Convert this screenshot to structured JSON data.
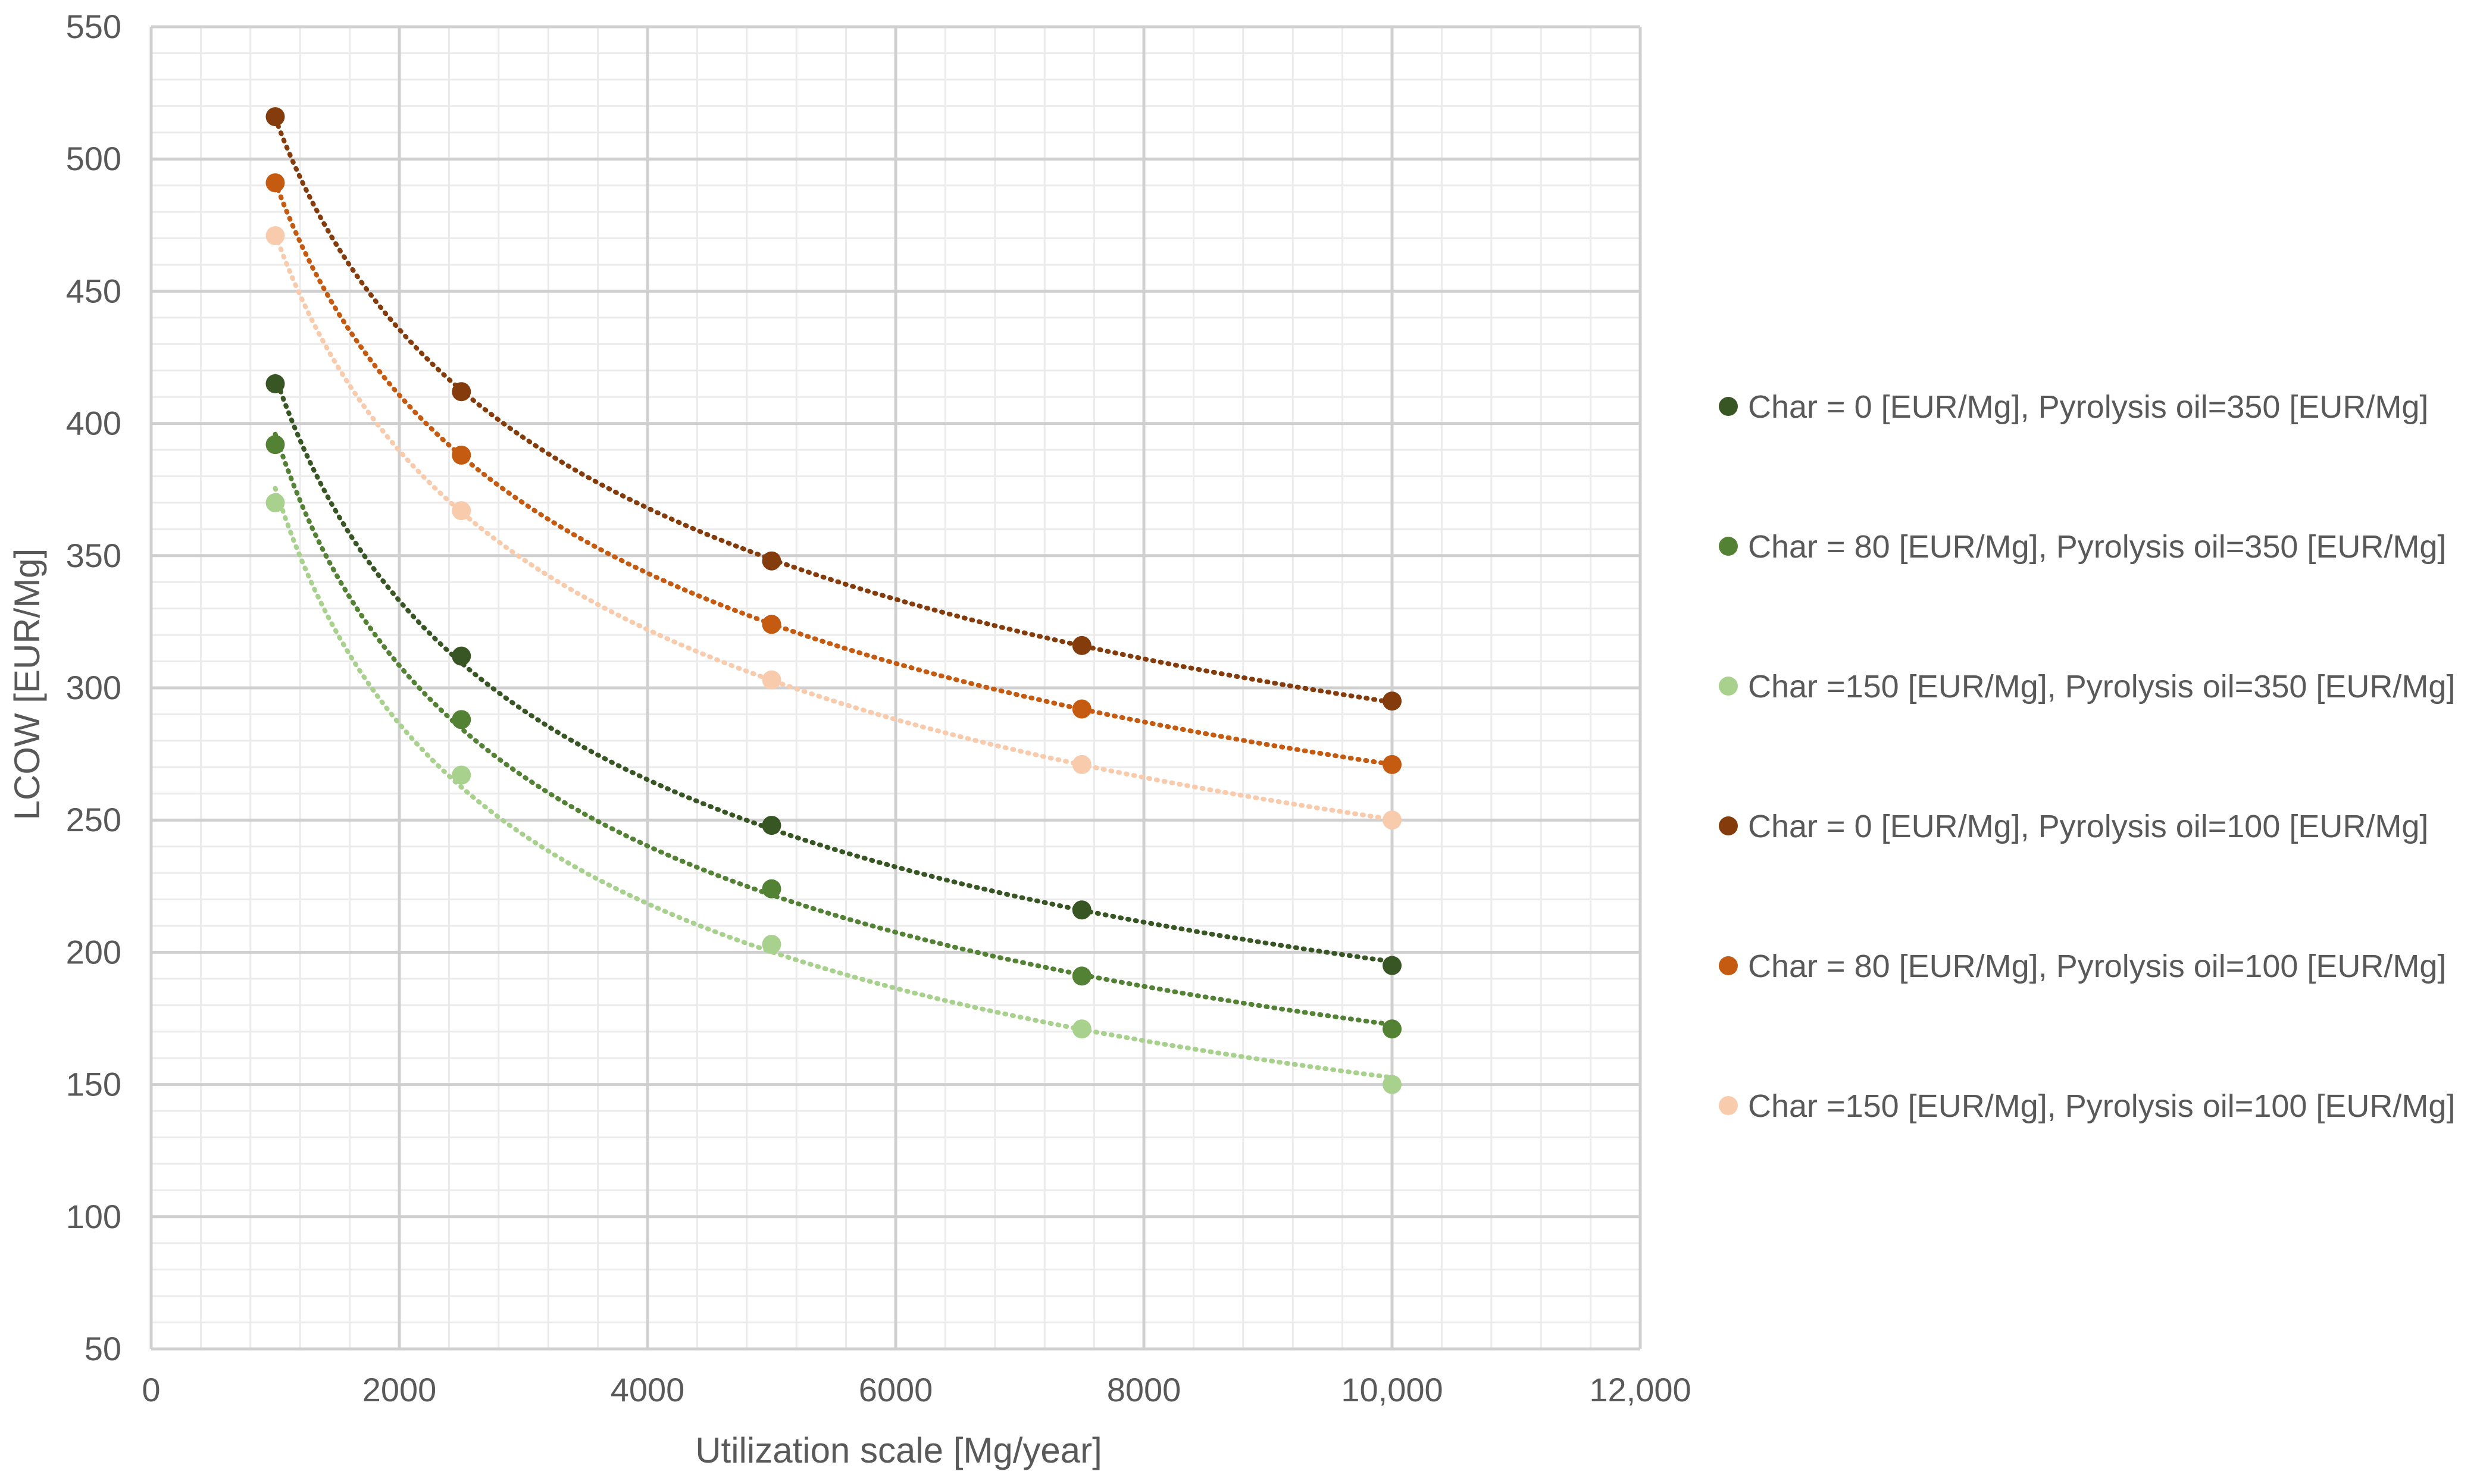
{
  "chart_data": {
    "type": "scatter",
    "title": "",
    "xlabel": "Utilization scale [Mg/year]",
    "ylabel": "LCOW [EUR/Mg]",
    "xlim": [
      0,
      12000
    ],
    "ylim": [
      50,
      550
    ],
    "x_major_ticks": [
      0,
      2000,
      4000,
      6000,
      8000,
      10000,
      12000
    ],
    "x_tick_labels": [
      "0",
      "2000",
      "4000",
      "6000",
      "8000",
      "10,000",
      "12,000"
    ],
    "y_major_ticks": [
      50,
      100,
      150,
      200,
      250,
      300,
      350,
      400,
      450,
      500,
      550
    ],
    "y_tick_labels": [
      "50",
      "100",
      "150",
      "200",
      "250",
      "300",
      "350",
      "400",
      "450",
      "500",
      "550"
    ],
    "x_minor_step": 400,
    "y_minor_step": 10,
    "grid": true,
    "trendline": "power (dotted)",
    "legend_position": "right",
    "x": [
      1000,
      2500,
      5000,
      7500,
      10000
    ],
    "series": [
      {
        "name": "Char = 0 [EUR/Mg], Pyrolysis oil=350 [EUR/Mg]",
        "color": "#375623",
        "values": [
          415,
          312,
          248,
          216,
          195
        ]
      },
      {
        "name": "Char = 80 [EUR/Mg], Pyrolysis oil=350 [EUR/Mg]",
        "color": "#548235",
        "values": [
          392,
          288,
          224,
          191,
          171
        ]
      },
      {
        "name": "Char =150 [EUR/Mg], Pyrolysis oil=350 [EUR/Mg]",
        "color": "#A9D18E",
        "values": [
          370,
          267,
          203,
          171,
          150
        ]
      },
      {
        "name": "Char = 0 [EUR/Mg], Pyrolysis oil=100 [EUR/Mg]",
        "color": "#843C0C",
        "values": [
          516,
          412,
          348,
          316,
          295
        ]
      },
      {
        "name": "Char = 80 [EUR/Mg], Pyrolysis oil=100 [EUR/Mg]",
        "color": "#C55A11",
        "values": [
          491,
          388,
          324,
          292,
          271
        ]
      },
      {
        "name": "Char =150 [EUR/Mg], Pyrolysis oil=100 [EUR/Mg]",
        "color": "#F8CBAD",
        "values": [
          471,
          367,
          303,
          271,
          250
        ]
      }
    ],
    "colors": {
      "major_grid": "#D0D0D0",
      "minor_grid": "#EBEBEB",
      "axis_text": "#595959"
    }
  }
}
